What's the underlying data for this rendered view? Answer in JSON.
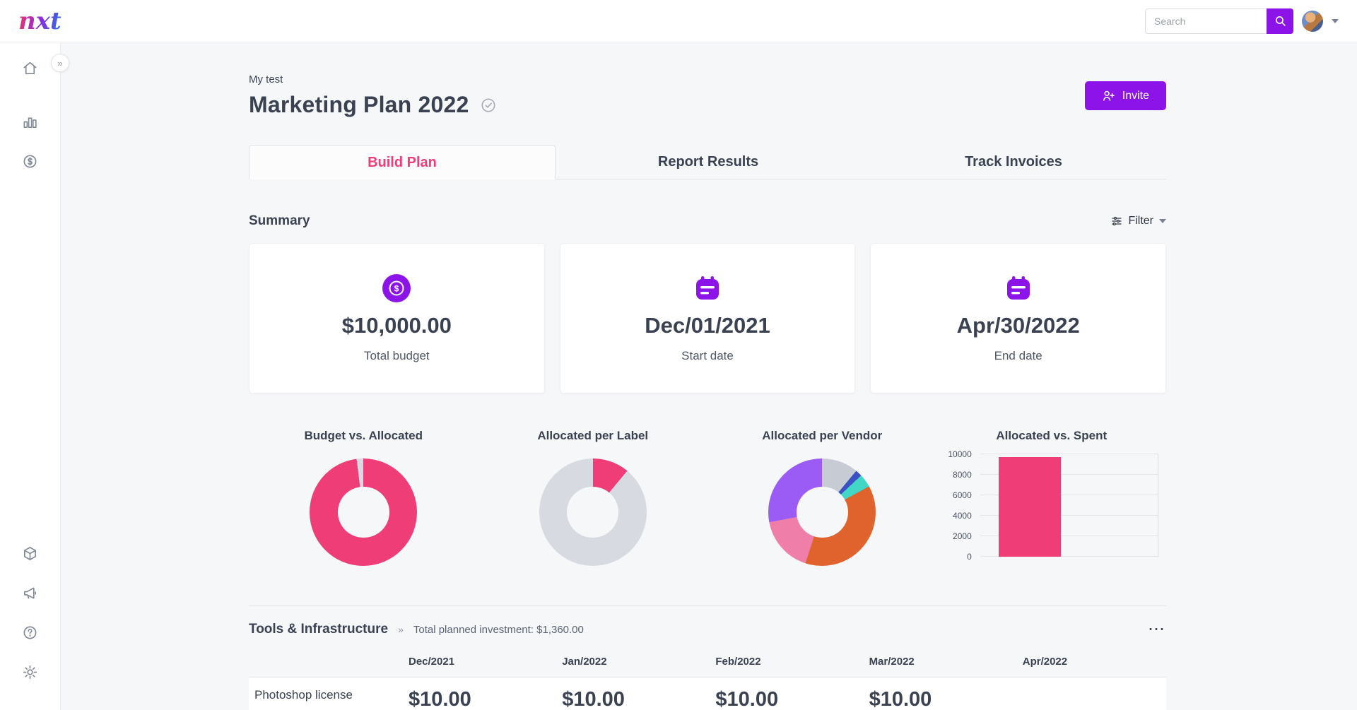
{
  "topbar": {
    "logo": "nxt",
    "search": {
      "placeholder": "Search"
    }
  },
  "sidebar": {
    "collapse_label": "»",
    "items": [
      {
        "icon": "home-icon"
      },
      {
        "icon": "bar-chart-icon"
      },
      {
        "icon": "dollar-circle-icon"
      },
      {
        "icon": "cube-icon"
      },
      {
        "icon": "megaphone-icon"
      },
      {
        "icon": "help-icon"
      },
      {
        "icon": "settings-icon"
      }
    ]
  },
  "header": {
    "breadcrumb": "My test",
    "title": "Marketing Plan 2022",
    "invite_button": "Invite"
  },
  "tabs": [
    {
      "label": "Build Plan",
      "active": true
    },
    {
      "label": "Report Results",
      "active": false
    },
    {
      "label": "Track Invoices",
      "active": false
    }
  ],
  "summary": {
    "heading": "Summary",
    "filter_label": "Filter",
    "cards": [
      {
        "icon": "dollar-badge-icon",
        "value": "$10,000.00",
        "label": "Total budget"
      },
      {
        "icon": "calendar-icon",
        "value": "Dec/01/2021",
        "label": "Start date"
      },
      {
        "icon": "calendar-icon",
        "value": "Apr/30/2022",
        "label": "End date"
      }
    ]
  },
  "chart_data": [
    {
      "type": "pie",
      "title": "Budget vs. Allocated",
      "slices": [
        {
          "value": 98,
          "color": "#EE3D77"
        },
        {
          "value": 2,
          "color": "#D7DAE0"
        }
      ]
    },
    {
      "type": "pie",
      "title": "Allocated per Label",
      "slices": [
        {
          "value": 11,
          "color": "#EE3D77"
        },
        {
          "value": 89,
          "color": "#D7DAE0"
        }
      ]
    },
    {
      "type": "pie",
      "title": "Allocated per Vendor",
      "slices": [
        {
          "value": 11,
          "color": "#C7CBD4"
        },
        {
          "value": 2,
          "color": "#3D50C3"
        },
        {
          "value": 4,
          "color": "#41D6C6"
        },
        {
          "value": 38,
          "color": "#E0622D"
        },
        {
          "value": 17,
          "color": "#EF7FA8"
        },
        {
          "value": 28,
          "color": "#9B5CF6"
        }
      ]
    },
    {
      "type": "bar",
      "title": "Allocated vs. Spent",
      "values": [
        9700
      ],
      "bar_color": "#EE3D77",
      "ylim": [
        0,
        10000
      ],
      "yticks": [
        10000,
        8000,
        6000,
        4000,
        2000,
        0
      ],
      "grid": true
    }
  ],
  "section": {
    "title": "Tools & Infrastructure",
    "chevron": "»",
    "total": "Total planned investment: $1,360.00",
    "more_icon": "⋯",
    "columns": [
      "Dec/2021",
      "Jan/2022",
      "Feb/2022",
      "Mar/2022",
      "Apr/2022"
    ],
    "rows": [
      {
        "name": "Photoshop license",
        "values": [
          "$10.00",
          "$10.00",
          "$10.00",
          "$10.00",
          ""
        ]
      }
    ]
  },
  "colors": {
    "accent_purple": "#8D14E8",
    "accent_pink": "#EE3D77"
  }
}
